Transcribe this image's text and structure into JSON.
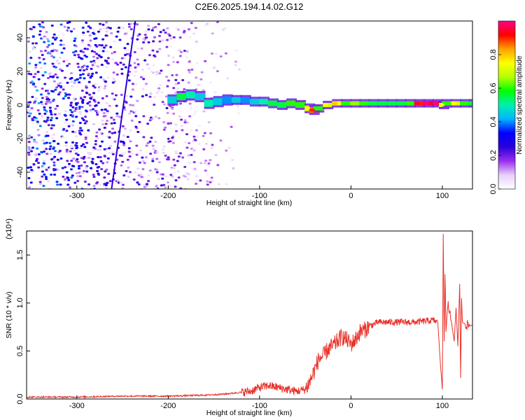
{
  "figure_title": "C2E6.2025.194.14.02.G12",
  "chart_data": [
    {
      "type": "heatmap",
      "title": "C2E6.2025.194.14.02.G12",
      "xlabel": "Height of straight line (km)",
      "ylabel": "Frequency (Hz)",
      "xlim": [
        -355,
        133
      ],
      "ylim": [
        -50,
        50
      ],
      "xticks": [
        -300,
        -200,
        -100,
        0,
        100
      ],
      "yticks": [
        -40,
        -20,
        0,
        20,
        40
      ],
      "colorbar": {
        "label": "Normalized spectral amplitude",
        "range": [
          0.0,
          1.0
        ],
        "ticks": [
          0.0,
          0.2,
          0.4,
          0.6,
          0.8
        ],
        "colormap": [
          "#ffffff",
          "#e8d0f8",
          "#9a2ef0",
          "#2a00d8",
          "#0000ff",
          "#00b4ff",
          "#00f0b0",
          "#00ff00",
          "#b4ff00",
          "#ffff00",
          "#ffa000",
          "#ff0000",
          "#ff0088"
        ]
      },
      "noise_region_km": [
        -355,
        -130
      ],
      "sweep_line": {
        "x": [
          -262,
          -236
        ],
        "y": [
          -50,
          50
        ]
      },
      "ridge": [
        {
          "x": -200,
          "y": 3,
          "value": 0.45
        },
        {
          "x": -190,
          "y": 5,
          "value": 0.55
        },
        {
          "x": -180,
          "y": 6,
          "value": 0.5
        },
        {
          "x": -170,
          "y": 5,
          "value": 0.45
        },
        {
          "x": -160,
          "y": 1,
          "value": 0.5
        },
        {
          "x": -150,
          "y": 2,
          "value": 0.45
        },
        {
          "x": -140,
          "y": 3,
          "value": 0.4
        },
        {
          "x": -130,
          "y": 3,
          "value": 0.45
        },
        {
          "x": -120,
          "y": 3,
          "value": 0.4
        },
        {
          "x": -110,
          "y": 2,
          "value": 0.45
        },
        {
          "x": -100,
          "y": 2,
          "value": 0.5
        },
        {
          "x": -90,
          "y": 1,
          "value": 0.55
        },
        {
          "x": -80,
          "y": 0,
          "value": 0.55
        },
        {
          "x": -70,
          "y": 1,
          "value": 0.6
        },
        {
          "x": -60,
          "y": 0,
          "value": 0.6
        },
        {
          "x": -50,
          "y": -2,
          "value": 0.7
        },
        {
          "x": -45,
          "y": -3,
          "value": 0.85
        },
        {
          "x": -40,
          "y": -2,
          "value": 0.6
        },
        {
          "x": -30,
          "y": 0,
          "value": 0.7
        },
        {
          "x": -20,
          "y": 1,
          "value": 0.75
        },
        {
          "x": -10,
          "y": 1,
          "value": 0.6
        },
        {
          "x": 0,
          "y": 1,
          "value": 0.65
        },
        {
          "x": 10,
          "y": 1,
          "value": 0.6
        },
        {
          "x": 20,
          "y": 1,
          "value": 0.55
        },
        {
          "x": 30,
          "y": 1,
          "value": 0.55
        },
        {
          "x": 40,
          "y": 1,
          "value": 0.55
        },
        {
          "x": 50,
          "y": 1,
          "value": 0.55
        },
        {
          "x": 60,
          "y": 1,
          "value": 0.6
        },
        {
          "x": 70,
          "y": 1,
          "value": 0.9
        },
        {
          "x": 80,
          "y": 1,
          "value": 0.95
        },
        {
          "x": 90,
          "y": 1,
          "value": 0.95
        },
        {
          "x": 97,
          "y": 0,
          "value": 0.7
        },
        {
          "x": 100,
          "y": 1,
          "value": 0.6
        },
        {
          "x": 110,
          "y": 1,
          "value": 0.7
        },
        {
          "x": 120,
          "y": 1,
          "value": 0.6
        },
        {
          "x": 130,
          "y": 1,
          "value": 0.55
        }
      ]
    },
    {
      "type": "line",
      "xlabel": "Height of straight line (km)",
      "ylabel": "SNR (10 * v/v)",
      "y_multiplier": "(x10⁴)",
      "xlim": [
        -355,
        133
      ],
      "ylim": [
        0.0,
        1.75
      ],
      "xticks": [
        -300,
        -200,
        -100,
        0,
        100
      ],
      "yticks": [
        0.0,
        0.5,
        1.0,
        1.5
      ],
      "ytick_labels": [
        "0.0",
        "0.5",
        "1.0",
        "1.5"
      ],
      "color": "#e8322a",
      "series": [
        {
          "x": [
            -355,
            -300,
            -250,
            -200,
            -160,
            -140,
            -130,
            -110,
            -100,
            -90,
            -80,
            -70,
            -60,
            -50,
            -45,
            -40,
            -35,
            -30,
            -25,
            -20,
            -15,
            -10,
            -5,
            0,
            5,
            10,
            15,
            20,
            30,
            40,
            50,
            60,
            70,
            80,
            90,
            95,
            98,
            100,
            101,
            102,
            103,
            104,
            106,
            110,
            113,
            115,
            117,
            119,
            120,
            121,
            122,
            125,
            130,
            133
          ],
          "y": [
            0.02,
            0.02,
            0.03,
            0.03,
            0.04,
            0.05,
            0.06,
            0.08,
            0.12,
            0.14,
            0.12,
            0.1,
            0.08,
            0.1,
            0.18,
            0.3,
            0.42,
            0.45,
            0.52,
            0.55,
            0.6,
            0.65,
            0.62,
            0.57,
            0.62,
            0.7,
            0.72,
            0.76,
            0.8,
            0.8,
            0.8,
            0.8,
            0.8,
            0.81,
            0.82,
            0.8,
            0.35,
            0.1,
            1.72,
            0.6,
            1.3,
            0.7,
            1.0,
            0.8,
            0.6,
            0.95,
            0.55,
            1.2,
            0.22,
            1.05,
            0.8,
            0.78,
            0.76,
            0.77
          ]
        }
      ]
    }
  ]
}
